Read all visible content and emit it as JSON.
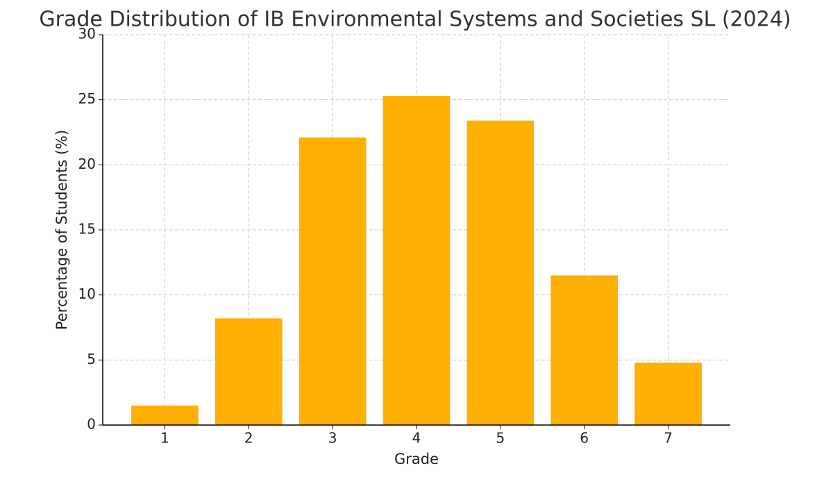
{
  "chart_data": {
    "type": "bar",
    "title": "Grade Distribution of IB Environmental Systems and Societies SL (2024)",
    "x_label": "Grade",
    "y_label": "Percentage of Students (%)",
    "categories": [
      "1",
      "2",
      "3",
      "4",
      "5",
      "6",
      "7"
    ],
    "values": [
      1.5,
      8.2,
      22.1,
      25.3,
      23.4,
      11.5,
      4.8
    ],
    "color": "#ffb000",
    "ylim": [
      0,
      30
    ],
    "yticks": [
      0,
      5,
      10,
      15,
      20,
      25,
      30
    ],
    "grid": true
  }
}
